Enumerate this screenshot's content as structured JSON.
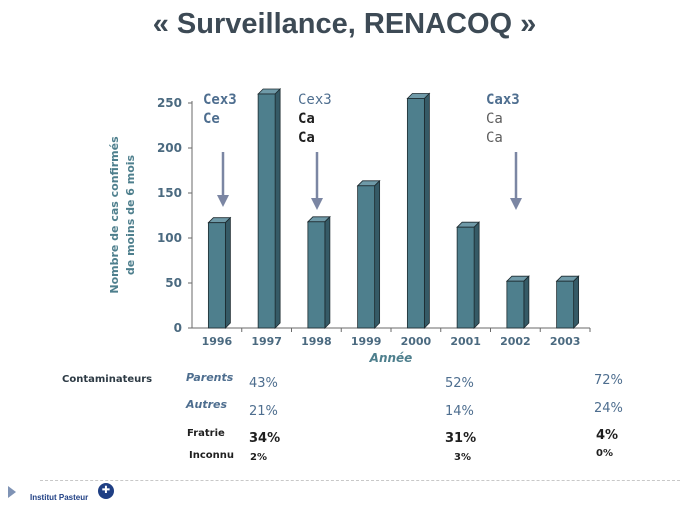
{
  "title": "« Surveillance, RENACOQ »",
  "chart_data": {
    "type": "bar",
    "categories": [
      "1996",
      "1997",
      "1998",
      "1999",
      "2000",
      "2001",
      "2002",
      "2003"
    ],
    "values": [
      117,
      260,
      118,
      158,
      255,
      112,
      52,
      52
    ],
    "ylabel_lines": [
      "Nombre de cas confirmés",
      "de moins de 6 mois"
    ],
    "xlabel": "Année",
    "ylim": [
      0,
      250
    ],
    "yticks": [
      "0",
      "50",
      "100",
      "150",
      "200",
      "250"
    ],
    "bar_color": "#4e7f8d",
    "annotations": [
      {
        "lines": [
          "Cex3",
          "Ce"
        ],
        "category": "1996"
      },
      {
        "lines": [
          "Cex3",
          "Ca",
          "Ca"
        ],
        "category": "1998"
      },
      {
        "lines": [
          "Cax3",
          "Ca",
          "Ca"
        ],
        "category": "2002"
      }
    ]
  },
  "contaminateurs": {
    "label": "Contaminateurs",
    "rows": [
      {
        "label": "Parents",
        "values": [
          "43%",
          "52%",
          "72%"
        ]
      },
      {
        "label": "Autres",
        "values": [
          "21%",
          "14%",
          "24%"
        ]
      },
      {
        "label": "Fratrie",
        "values": [
          "34%",
          "31%",
          "4%"
        ]
      },
      {
        "label": "Inconnu",
        "values": [
          "2%",
          "3%",
          "0%"
        ]
      }
    ]
  },
  "footer": {
    "logo_text": "Institut Pasteur"
  }
}
